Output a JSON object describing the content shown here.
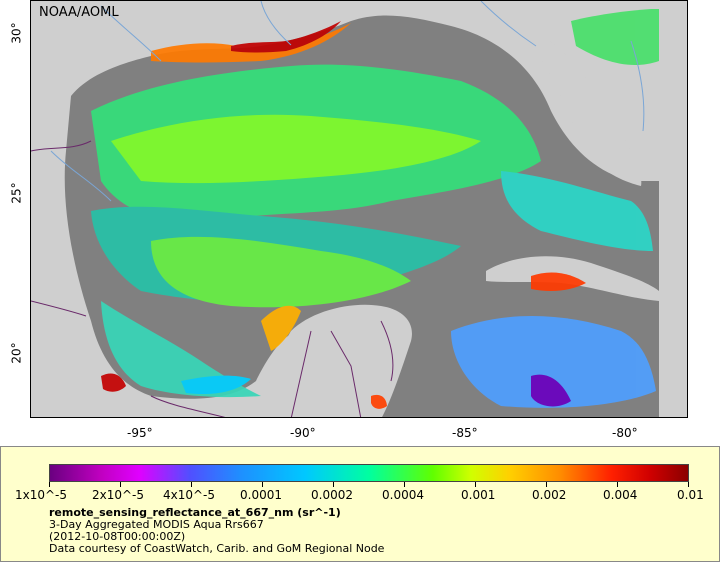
{
  "map": {
    "agency": "NOAA/AOML",
    "lat_labels": [
      "30°",
      "25°",
      "20°"
    ],
    "lon_labels": [
      "-95°",
      "-90°",
      "-85°",
      "-80°"
    ],
    "colors": {
      "land": "#cfcfcf",
      "no_data": "#808080",
      "water_lines": "#7aa6d6",
      "borders": "#6a2a6a"
    }
  },
  "legend": {
    "ticks": [
      "1x10^-5",
      "2x10^-5",
      "4x10^-5",
      "0.0001",
      "0.0002",
      "0.0004",
      "0.001",
      "0.002",
      "0.004",
      "0.01"
    ],
    "title": "remote_sensing_reflectance_at_667_nm (sr^-1)",
    "line1": "3-Day Aggregated MODIS Aqua Rrs667",
    "line2": "(2012-10-08T00:00:00Z)",
    "line3": "Data courtesy of CoastWatch, Carib. and GoM Regional Node"
  }
}
